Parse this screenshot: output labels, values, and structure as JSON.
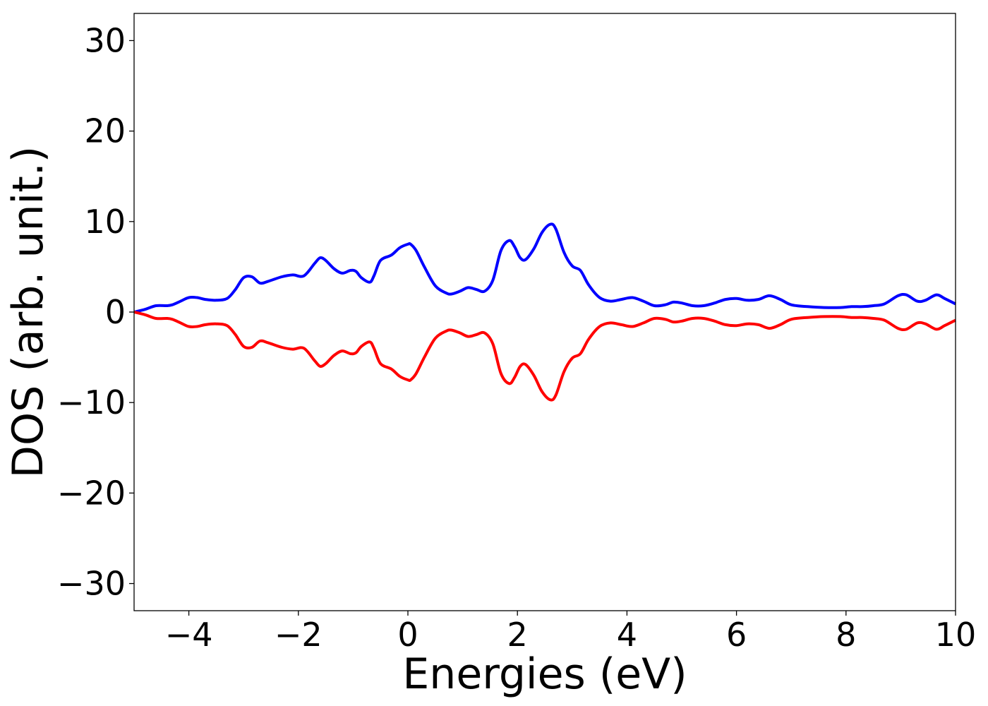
{
  "chart_data": {
    "type": "line",
    "title": "",
    "xlabel": "Energies (eV)",
    "ylabel": "DOS (arb. unit.)",
    "xlim": [
      -5,
      10
    ],
    "ylim": [
      -33,
      33
    ],
    "grid": false,
    "legend": "none",
    "x_ticks": [
      -4,
      -2,
      0,
      2,
      4,
      6,
      8,
      10
    ],
    "x_tick_labels": [
      "−4",
      "−2",
      "0",
      "2",
      "4",
      "6",
      "8",
      "10"
    ],
    "y_ticks": [
      30,
      20,
      10,
      0,
      -10,
      -20,
      -30
    ],
    "y_tick_labels": [
      "30",
      "20",
      "10",
      "0",
      "−10",
      "−20",
      "−30"
    ],
    "series": [
      {
        "color": "#0000ff",
        "x": [
          -5.0,
          -4.8,
          -4.6,
          -4.4,
          -4.3,
          -4.15,
          -4.0,
          -3.85,
          -3.7,
          -3.5,
          -3.3,
          -3.15,
          -3.0,
          -2.85,
          -2.7,
          -2.55,
          -2.3,
          -2.1,
          -1.9,
          -1.7,
          -1.6,
          -1.5,
          -1.35,
          -1.2,
          -1.05,
          -0.95,
          -0.85,
          -0.7,
          -0.62,
          -0.5,
          -0.3,
          -0.15,
          0.0,
          0.05,
          0.15,
          0.3,
          0.5,
          0.7,
          0.8,
          0.95,
          1.1,
          1.25,
          1.4,
          1.55,
          1.7,
          1.85,
          1.95,
          2.05,
          2.15,
          2.3,
          2.45,
          2.6,
          2.7,
          2.85,
          3.0,
          3.15,
          3.3,
          3.5,
          3.7,
          3.9,
          4.1,
          4.3,
          4.5,
          4.7,
          4.85,
          5.0,
          5.2,
          5.4,
          5.6,
          5.8,
          6.0,
          6.2,
          6.4,
          6.6,
          6.8,
          7.0,
          7.3,
          7.6,
          7.9,
          8.1,
          8.3,
          8.5,
          8.7,
          8.95,
          9.1,
          9.3,
          9.45,
          9.65,
          9.8,
          10.0
        ],
        "y": [
          0.0,
          0.3,
          0.7,
          0.7,
          0.8,
          1.2,
          1.6,
          1.6,
          1.4,
          1.3,
          1.5,
          2.5,
          3.8,
          3.9,
          3.2,
          3.4,
          3.9,
          4.1,
          4.0,
          5.4,
          6.0,
          5.7,
          4.8,
          4.3,
          4.6,
          4.5,
          3.8,
          3.3,
          4.0,
          5.7,
          6.3,
          7.1,
          7.5,
          7.5,
          6.8,
          5.0,
          2.9,
          2.1,
          2.0,
          2.3,
          2.7,
          2.5,
          2.3,
          3.5,
          6.8,
          7.9,
          7.2,
          6.0,
          5.8,
          7.0,
          8.8,
          9.7,
          9.2,
          6.6,
          5.1,
          4.6,
          3.0,
          1.6,
          1.2,
          1.4,
          1.6,
          1.2,
          0.7,
          0.8,
          1.1,
          1.0,
          0.7,
          0.7,
          1.0,
          1.4,
          1.5,
          1.3,
          1.4,
          1.8,
          1.4,
          0.8,
          0.6,
          0.5,
          0.5,
          0.6,
          0.6,
          0.7,
          0.9,
          1.8,
          1.9,
          1.2,
          1.3,
          1.9,
          1.5,
          0.9
        ]
      },
      {
        "color": "#ff0000",
        "x": [
          -5.0,
          -4.8,
          -4.6,
          -4.4,
          -4.3,
          -4.15,
          -4.0,
          -3.85,
          -3.7,
          -3.5,
          -3.3,
          -3.15,
          -3.0,
          -2.85,
          -2.7,
          -2.55,
          -2.3,
          -2.1,
          -1.9,
          -1.7,
          -1.6,
          -1.5,
          -1.35,
          -1.2,
          -1.05,
          -0.95,
          -0.85,
          -0.7,
          -0.62,
          -0.5,
          -0.3,
          -0.15,
          0.0,
          0.05,
          0.15,
          0.3,
          0.5,
          0.7,
          0.8,
          0.95,
          1.1,
          1.25,
          1.4,
          1.55,
          1.7,
          1.85,
          1.95,
          2.05,
          2.15,
          2.3,
          2.45,
          2.6,
          2.7,
          2.85,
          3.0,
          3.15,
          3.3,
          3.5,
          3.7,
          3.9,
          4.1,
          4.3,
          4.5,
          4.7,
          4.85,
          5.0,
          5.2,
          5.4,
          5.6,
          5.8,
          6.0,
          6.2,
          6.4,
          6.6,
          6.8,
          7.0,
          7.3,
          7.6,
          7.9,
          8.1,
          8.3,
          8.5,
          8.7,
          8.95,
          9.1,
          9.3,
          9.45,
          9.65,
          9.8,
          10.0
        ],
        "y": [
          0.0,
          -0.3,
          -0.7,
          -0.7,
          -0.8,
          -1.2,
          -1.6,
          -1.6,
          -1.4,
          -1.3,
          -1.5,
          -2.5,
          -3.8,
          -3.9,
          -3.2,
          -3.4,
          -3.9,
          -4.1,
          -4.0,
          -5.4,
          -6.0,
          -5.7,
          -4.8,
          -4.3,
          -4.6,
          -4.5,
          -3.8,
          -3.3,
          -4.0,
          -5.7,
          -6.3,
          -7.1,
          -7.5,
          -7.5,
          -6.8,
          -5.0,
          -2.9,
          -2.1,
          -2.0,
          -2.3,
          -2.7,
          -2.5,
          -2.3,
          -3.5,
          -6.8,
          -7.9,
          -7.2,
          -6.0,
          -5.8,
          -7.0,
          -8.8,
          -9.7,
          -9.2,
          -6.6,
          -5.1,
          -4.6,
          -3.0,
          -1.6,
          -1.2,
          -1.4,
          -1.6,
          -1.2,
          -0.7,
          -0.8,
          -1.1,
          -1.0,
          -0.7,
          -0.7,
          -1.0,
          -1.4,
          -1.5,
          -1.3,
          -1.4,
          -1.8,
          -1.4,
          -0.8,
          -0.6,
          -0.5,
          -0.5,
          -0.6,
          -0.6,
          -0.7,
          -0.9,
          -1.8,
          -1.9,
          -1.2,
          -1.3,
          -1.9,
          -1.5,
          -0.9
        ]
      }
    ]
  }
}
